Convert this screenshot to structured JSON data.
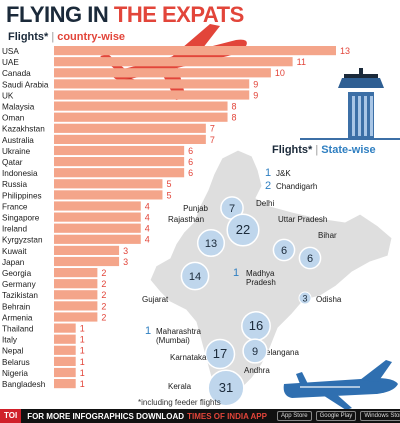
{
  "title": {
    "part1": "FLYING IN ",
    "part2": "THE EXPATS"
  },
  "subtitle_left": {
    "bold": "Flights*",
    "sep": "|",
    "rest": "country-wise"
  },
  "subtitle_right": {
    "bold": "Flights*",
    "sep": "|",
    "rest": "State-wise"
  },
  "footnote": "*including feeder flights",
  "footer": {
    "logo": "TOI",
    "text1": "FOR MORE  INFOGRAPHICS DOWNLOAD",
    "text2": "TIMES OF INDIA APP",
    "badges": [
      "App Store",
      "Google Play",
      "Windows Store"
    ]
  },
  "colors": {
    "bar": "#f4a58a",
    "accent": "#e2453a",
    "dark": "#1b2a3a",
    "blue": "#2f7fc1",
    "circle": "#bfd6ec",
    "map": "#dcdcdc"
  },
  "icons": [
    "airplane-red-icon",
    "control-tower-icon",
    "airplane-blue-icon"
  ],
  "chart_data": [
    {
      "type": "bar",
      "orientation": "horizontal",
      "categories": [
        "USA",
        "UAE",
        "Canada",
        "Saudi Arabia",
        "UK",
        "Malaysia",
        "Oman",
        "Kazakhstan",
        "Australia",
        "Ukraine",
        "Qatar",
        "Indonesia",
        "Russia",
        "Philippines",
        "France",
        "Singapore",
        "Ireland",
        "Kyrgyzstan",
        "Kuwait",
        "Japan",
        "Georgia",
        "Germany",
        "Tazikistan",
        "Behrain",
        "Armenia",
        "Thailand",
        "Italy",
        "Nepal",
        "Belarus",
        "Nigeria",
        "Bangladesh"
      ],
      "values": [
        13,
        11,
        10,
        9,
        9,
        8,
        8,
        7,
        7,
        6,
        6,
        6,
        5,
        5,
        4,
        4,
        4,
        4,
        3,
        3,
        2,
        2,
        2,
        2,
        2,
        1,
        1,
        1,
        1,
        1,
        1
      ],
      "xlim": [
        0,
        13
      ],
      "grid": false,
      "legend": "none"
    },
    {
      "type": "bubble-map",
      "points": [
        {
          "label": "J&K",
          "value": 1
        },
        {
          "label": "Chandigarh",
          "value": 2
        },
        {
          "label": "Punjab",
          "value": 7
        },
        {
          "label": "Delhi",
          "value": 22
        },
        {
          "label": "Rajasthan",
          "value": 13
        },
        {
          "label": "Uttar Pradesh",
          "value": 6
        },
        {
          "label": "Bihar",
          "value": 6
        },
        {
          "label": "Madhya Pradesh",
          "value": 1
        },
        {
          "label": "Gujarat",
          "value": 14
        },
        {
          "label": "Odisha",
          "value": 3
        },
        {
          "label": "Maharashtra (Mumbai)",
          "value": 1
        },
        {
          "label": "Telangana",
          "value": 16
        },
        {
          "label": "Karnataka",
          "value": 17
        },
        {
          "label": "Andhra",
          "value": 9
        },
        {
          "label": "Kerala",
          "value": 31
        }
      ]
    }
  ]
}
